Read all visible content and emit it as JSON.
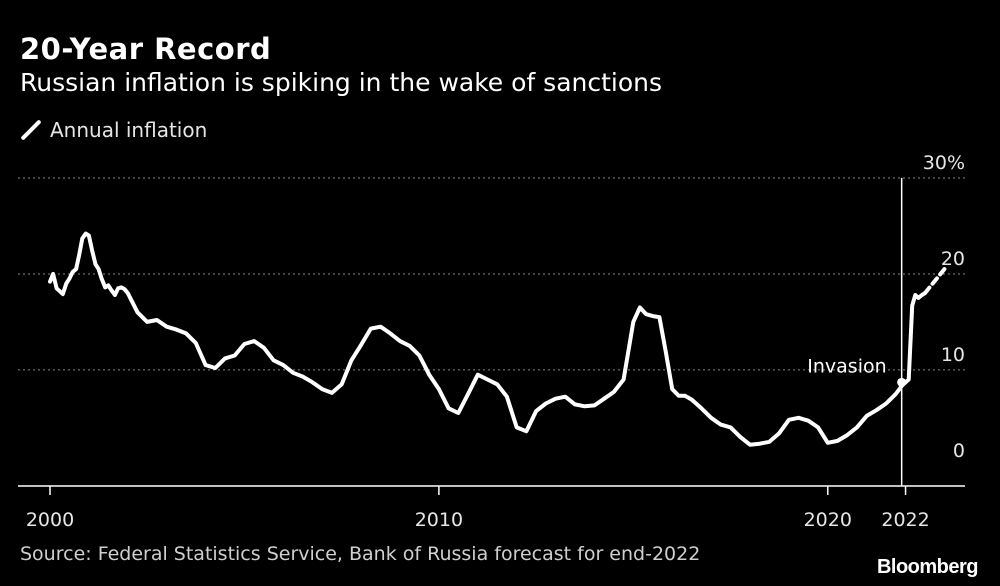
{
  "header": {
    "title": "20-Year Record",
    "subtitle": "Russian inflation is spiking in the wake of sanctions"
  },
  "legend": {
    "label": "Annual inflation"
  },
  "footer": {
    "source": "Source: Federal Statistics Service, Bank of Russia forecast for end-2022",
    "brand": "Bloomberg"
  },
  "colors": {
    "background": "#000000",
    "line": "#ffffff",
    "grid": "#8a8a8a"
  },
  "chart_data": {
    "type": "line",
    "title": "20-Year Record",
    "subtitle": "Russian inflation is spiking in the wake of sanctions",
    "xlabel": "",
    "ylabel": "",
    "xlim": [
      2000,
      2023.4
    ],
    "ylim": [
      -2,
      30
    ],
    "x_ticks": [
      2000,
      2010,
      2020,
      2022
    ],
    "x_tick_labels": [
      "2000",
      "2010",
      "2020",
      "2022"
    ],
    "y_ticks": [
      0,
      10,
      20,
      30
    ],
    "y_tick_labels": [
      "0",
      "10",
      "20",
      "30%"
    ],
    "gridlines": "horizontal dotted",
    "legend_position": "top-left",
    "series": [
      {
        "name": "Annual inflation",
        "x": [
          2000.0,
          2000.08,
          2000.17,
          2000.25,
          2000.33,
          2000.42,
          2000.5,
          2000.58,
          2000.67,
          2000.75,
          2000.83,
          2000.92,
          2001.0,
          2001.08,
          2001.17,
          2001.25,
          2001.33,
          2001.42,
          2001.5,
          2001.58,
          2001.67,
          2001.75,
          2001.83,
          2001.92,
          2002.0,
          2002.25,
          2002.5,
          2002.75,
          2003.0,
          2003.25,
          2003.5,
          2003.75,
          2004.0,
          2004.25,
          2004.5,
          2004.75,
          2005.0,
          2005.25,
          2005.5,
          2005.75,
          2006.0,
          2006.25,
          2006.5,
          2006.75,
          2007.0,
          2007.25,
          2007.5,
          2007.75,
          2008.0,
          2008.25,
          2008.5,
          2008.75,
          2009.0,
          2009.25,
          2009.5,
          2009.75,
          2010.0,
          2010.25,
          2010.5,
          2010.75,
          2011.0,
          2011.25,
          2011.5,
          2011.75,
          2012.0,
          2012.25,
          2012.5,
          2012.75,
          2013.0,
          2013.25,
          2013.5,
          2013.75,
          2014.0,
          2014.25,
          2014.5,
          2014.75,
          2015.0,
          2015.17,
          2015.33,
          2015.5,
          2015.67,
          2015.83,
          2016.0,
          2016.17,
          2016.33,
          2016.5,
          2016.75,
          2017.0,
          2017.25,
          2017.5,
          2017.75,
          2018.0,
          2018.25,
          2018.5,
          2018.75,
          2019.0,
          2019.25,
          2019.5,
          2019.75,
          2020.0,
          2020.25,
          2020.5,
          2020.75,
          2021.0,
          2021.25,
          2021.5,
          2021.75,
          2021.92,
          2022.0,
          2022.08,
          2022.17,
          2022.25,
          2022.33,
          2022.42,
          2022.5
        ],
        "values": [
          19.2,
          20.0,
          18.5,
          18.2,
          17.9,
          19.0,
          19.5,
          20.2,
          20.5,
          22.0,
          23.7,
          24.2,
          24.0,
          22.5,
          21.0,
          20.5,
          19.5,
          18.6,
          18.8,
          18.3,
          17.8,
          18.5,
          18.6,
          18.4,
          18.0,
          16.0,
          15.0,
          15.2,
          14.5,
          14.2,
          13.8,
          12.8,
          10.5,
          10.2,
          11.2,
          11.5,
          12.7,
          13.0,
          12.3,
          11.0,
          10.5,
          9.7,
          9.3,
          8.7,
          8.0,
          7.6,
          8.5,
          11.0,
          12.6,
          14.3,
          14.5,
          13.8,
          13.0,
          12.5,
          11.5,
          9.5,
          8.0,
          6.0,
          5.5,
          7.5,
          9.5,
          9.0,
          8.5,
          7.2,
          4.0,
          3.6,
          5.7,
          6.5,
          7.0,
          7.2,
          6.4,
          6.2,
          6.3,
          7.0,
          7.7,
          9.0,
          15.0,
          16.5,
          15.8,
          15.6,
          15.5,
          12.0,
          8.0,
          7.3,
          7.3,
          6.9,
          6.0,
          5.0,
          4.3,
          4.0,
          3.0,
          2.2,
          2.3,
          2.5,
          3.4,
          4.8,
          5.0,
          4.7,
          4.0,
          2.4,
          2.6,
          3.2,
          4.0,
          5.2,
          5.8,
          6.5,
          7.5,
          8.4,
          8.7,
          9.0,
          16.7,
          17.8,
          17.5,
          17.8,
          18.0
        ],
        "forecast": {
          "x": [
            2022.5,
            2023.0
          ],
          "values": [
            18.0,
            20.5
          ]
        }
      }
    ],
    "annotations": [
      {
        "label": "Invasion",
        "x": 2021.9,
        "marker_value": 8.7,
        "type": "vertical-line"
      }
    ]
  }
}
